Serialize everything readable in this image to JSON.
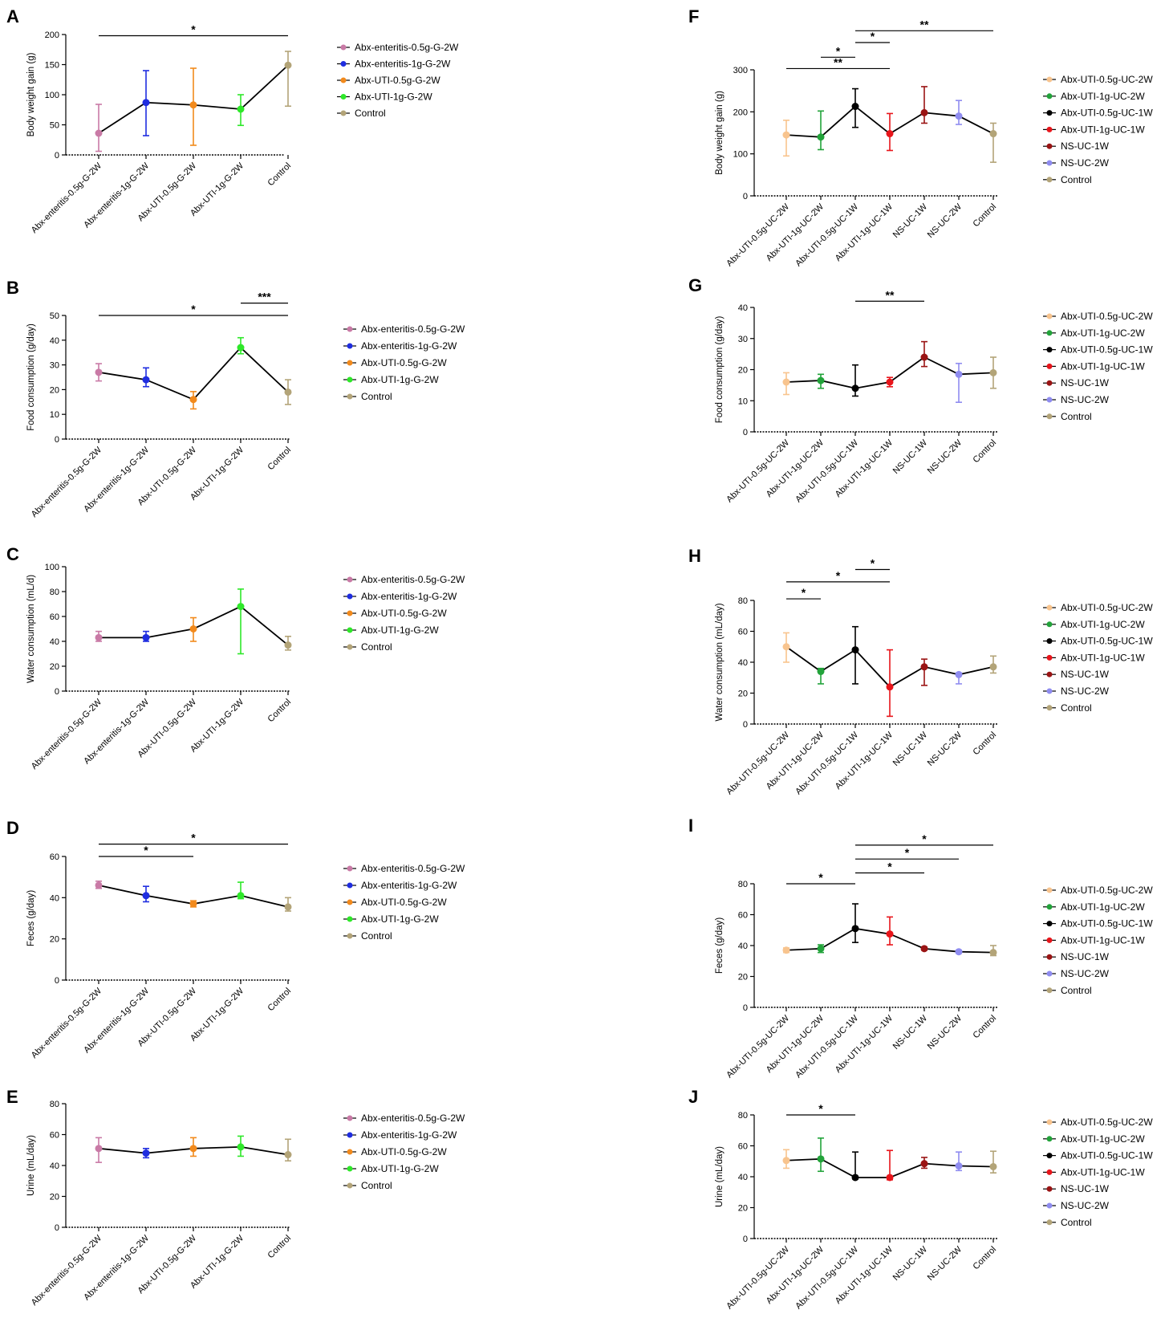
{
  "colors": {
    "pink": "#c97aa6",
    "blue": "#1f2de0",
    "orange": "#f28a1c",
    "green_bright": "#2ee829",
    "khaki": "#b3a478",
    "peach": "#f8c48e",
    "green": "#22a33a",
    "black": "#000000",
    "red": "#e8151b",
    "darkred": "#9a1414",
    "lavender": "#8f8cf0"
  },
  "chart_data": [
    {
      "panel": "A",
      "type": "line",
      "categories": [
        "Abx-enteritis-0.5g-G-2W",
        "Abx-enteritis-1g-G-2W",
        "Abx-UTI-0.5g-G-2W",
        "Abx-UTI-1g-G-2W",
        "Control"
      ],
      "values": [
        36,
        87,
        83,
        76,
        149
      ],
      "err_low": [
        30,
        55,
        67,
        27,
        68
      ],
      "err_high": [
        48,
        53,
        61,
        24,
        23
      ],
      "point_colors": [
        "#c97aa6",
        "#1f2de0",
        "#f28a1c",
        "#2ee829",
        "#b3a478"
      ],
      "line_color": "#000000",
      "ylabel": "Body weight gain (g)",
      "ylim": [
        0,
        200
      ],
      "yticks": [
        0,
        50,
        100,
        150,
        200
      ],
      "significance": [
        {
          "from": 0,
          "to": 4,
          "label": "*",
          "y": 198
        }
      ],
      "legend": [
        "Abx-enteritis-0.5g-G-2W",
        "Abx-enteritis-1g-G-2W",
        "Abx-UTI-0.5g-G-2W",
        "Abx-UTI-1g-G-2W",
        "Control"
      ]
    },
    {
      "panel": "B",
      "type": "line",
      "categories": [
        "Abx-enteritis-0.5g-G-2W",
        "Abx-enteritis-1g-G-2W",
        "Abx-UTI-0.5g-G-2W",
        "Abx-UTI-1g-G-2W",
        "Control"
      ],
      "values": [
        27,
        24,
        16,
        37,
        19
      ],
      "err_low": [
        3.5,
        2.8,
        3.8,
        2.5,
        5
      ],
      "err_high": [
        3.5,
        4.8,
        3.2,
        4,
        5
      ],
      "point_colors": [
        "#c97aa6",
        "#1f2de0",
        "#f28a1c",
        "#2ee829",
        "#b3a478"
      ],
      "line_color": "#000000",
      "ylabel": "Food consumption (g/day)",
      "ylim": [
        0,
        50
      ],
      "yticks": [
        0,
        10,
        20,
        30,
        40,
        50
      ],
      "significance": [
        {
          "from": 0,
          "to": 4,
          "label": "*",
          "y": 50
        },
        {
          "from": 3,
          "to": 4,
          "label": "***",
          "y": 55
        }
      ],
      "legend": [
        "Abx-enteritis-0.5g-G-2W",
        "Abx-enteritis-1g-G-2W",
        "Abx-UTI-0.5g-G-2W",
        "Abx-UTI-1g-G-2W",
        "Control"
      ]
    },
    {
      "panel": "C",
      "type": "line",
      "categories": [
        "Abx-enteritis-0.5g-G-2W",
        "Abx-enteritis-1g-G-2W",
        "Abx-UTI-0.5g-G-2W",
        "Abx-UTI-1g-G-2W",
        "Control"
      ],
      "values": [
        43,
        43,
        50,
        68,
        37
      ],
      "err_low": [
        3,
        3,
        10,
        38,
        4
      ],
      "err_high": [
        5,
        5,
        9,
        14,
        7
      ],
      "point_colors": [
        "#c97aa6",
        "#1f2de0",
        "#f28a1c",
        "#2ee829",
        "#b3a478"
      ],
      "line_color": "#000000",
      "ylabel": "Water consumption (mL/d)",
      "ylim": [
        0,
        100
      ],
      "yticks": [
        0,
        20,
        40,
        60,
        80,
        100
      ],
      "significance": [],
      "legend": [
        "Abx-enteritis-0.5g-G-2W",
        "Abx-enteritis-1g-G-2W",
        "Abx-UTI-0.5g-G-2W",
        "Abx-UTI-1g-G-2W",
        "Control"
      ]
    },
    {
      "panel": "D",
      "type": "line",
      "categories": [
        "Abx-enteritis-0.5g-G-2W",
        "Abx-enteritis-1g-G-2W",
        "Abx-UTI-0.5g-G-2W",
        "Abx-UTI-1g-G-2W",
        "Control"
      ],
      "values": [
        46,
        41,
        37,
        41,
        35.5
      ],
      "err_low": [
        1.5,
        3,
        1.5,
        1.5,
        2
      ],
      "err_high": [
        2,
        4.5,
        1.5,
        6.5,
        4.5
      ],
      "point_colors": [
        "#c97aa6",
        "#1f2de0",
        "#f28a1c",
        "#2ee829",
        "#b3a478"
      ],
      "line_color": "#000000",
      "ylabel": "Feces (g/day)",
      "ylim": [
        0,
        60
      ],
      "yticks": [
        0,
        20,
        40,
        60
      ],
      "significance": [
        {
          "from": 0,
          "to": 2,
          "label": "*",
          "y": 60
        },
        {
          "from": 0,
          "to": 4,
          "label": "*",
          "y": 66
        }
      ],
      "legend": [
        "Abx-enteritis-0.5g-G-2W",
        "Abx-enteritis-1g-G-2W",
        "Abx-UTI-0.5g-G-2W",
        "Abx-UTI-1g-G-2W",
        "Control"
      ]
    },
    {
      "panel": "E",
      "type": "line",
      "categories": [
        "Abx-enteritis-0.5g-G-2W",
        "Abx-enteritis-1g-G-2W",
        "Abx-UTI-0.5g-G-2W",
        "Abx-UTI-1g-G-2W",
        "Control"
      ],
      "values": [
        51,
        48,
        51,
        52,
        47
      ],
      "err_low": [
        9,
        3,
        5,
        6,
        4
      ],
      "err_high": [
        7,
        3,
        7,
        7,
        10
      ],
      "point_colors": [
        "#c97aa6",
        "#1f2de0",
        "#f28a1c",
        "#2ee829",
        "#b3a478"
      ],
      "line_color": "#000000",
      "ylabel": "Urine (mL/day)",
      "ylim": [
        0,
        80
      ],
      "yticks": [
        0,
        20,
        40,
        60,
        80
      ],
      "significance": [],
      "legend": [
        "Abx-enteritis-0.5g-G-2W",
        "Abx-enteritis-1g-G-2W",
        "Abx-UTI-0.5g-G-2W",
        "Abx-UTI-1g-G-2W",
        "Control"
      ]
    },
    {
      "panel": "F",
      "type": "line",
      "categories": [
        "Abx-UTI-0.5g-UC-2W",
        "Abx-UTI-1g-UC-2W",
        "Abx-UTI-0.5g-UC-1W",
        "Abx-UTI-1g-UC-1W",
        "NS-UC-1W",
        "NS-UC-2W",
        "Control"
      ],
      "values": [
        145,
        140,
        213,
        148,
        198,
        190,
        148
      ],
      "err_low": [
        50,
        30,
        50,
        40,
        25,
        20,
        68
      ],
      "err_high": [
        35,
        62,
        42,
        48,
        62,
        37,
        25
      ],
      "point_colors": [
        "#f8c48e",
        "#22a33a",
        "#000000",
        "#e8151b",
        "#9a1414",
        "#8f8cf0",
        "#b3a478"
      ],
      "line_color": "#000000",
      "ylabel": "Body weight gain (g)",
      "ylim": [
        0,
        300
      ],
      "yticks": [
        0,
        100,
        200,
        300
      ],
      "significance": [
        {
          "from": 0,
          "to": 3,
          "label": "**",
          "y": 303
        },
        {
          "from": 1,
          "to": 2,
          "label": "*",
          "y": 330
        },
        {
          "from": 2,
          "to": 3,
          "label": "*",
          "y": 365
        },
        {
          "from": 2,
          "to": 6,
          "label": "**",
          "y": 393
        }
      ],
      "legend": [
        "Abx-UTI-0.5g-UC-2W",
        "Abx-UTI-1g-UC-2W",
        "Abx-UTI-0.5g-UC-1W",
        "Abx-UTI-1g-UC-1W",
        "NS-UC-1W",
        "NS-UC-2W",
        "Control"
      ]
    },
    {
      "panel": "G",
      "type": "line",
      "categories": [
        "Abx-UTI-0.5g-UC-2W",
        "Abx-UTI-1g-UC-2W",
        "Abx-UTI-0.5g-UC-1W",
        "Abx-UTI-1g-UC-1W",
        "NS-UC-1W",
        "NS-UC-2W",
        "Control"
      ],
      "values": [
        16,
        16.5,
        14,
        16,
        24,
        18.5,
        19
      ],
      "err_low": [
        4,
        2.5,
        2.5,
        1.5,
        3,
        9,
        5
      ],
      "err_high": [
        3,
        2,
        7.5,
        1.5,
        5,
        3.5,
        5
      ],
      "point_colors": [
        "#f8c48e",
        "#22a33a",
        "#000000",
        "#e8151b",
        "#9a1414",
        "#8f8cf0",
        "#b3a478"
      ],
      "line_color": "#000000",
      "ylabel": "Food consumption (g/day)",
      "ylim": [
        0,
        40
      ],
      "yticks": [
        0,
        10,
        20,
        30,
        40
      ],
      "significance": [
        {
          "from": 2,
          "to": 4,
          "label": "**",
          "y": 42
        }
      ],
      "legend": [
        "Abx-UTI-0.5g-UC-2W",
        "Abx-UTI-1g-UC-2W",
        "Abx-UTI-0.5g-UC-1W",
        "Abx-UTI-1g-UC-1W",
        "NS-UC-1W",
        "NS-UC-2W",
        "Control"
      ]
    },
    {
      "panel": "H",
      "type": "line",
      "categories": [
        "Abx-UTI-0.5g-UC-2W",
        "Abx-UTI-1g-UC-2W",
        "Abx-UTI-0.5g-UC-1W",
        "Abx-UTI-1g-UC-1W",
        "NS-UC-1W",
        "NS-UC-2W",
        "Control"
      ],
      "values": [
        50,
        34,
        48,
        24,
        37,
        32,
        37
      ],
      "err_low": [
        10,
        8,
        22,
        19,
        12,
        6,
        4
      ],
      "err_high": [
        9,
        2,
        15,
        24,
        5,
        1,
        7
      ],
      "point_colors": [
        "#f8c48e",
        "#22a33a",
        "#000000",
        "#e8151b",
        "#9a1414",
        "#8f8cf0",
        "#b3a478"
      ],
      "line_color": "#000000",
      "ylabel": "Water consumption (mL/day)",
      "ylim": [
        0,
        80
      ],
      "yticks": [
        0,
        20,
        40,
        60,
        80
      ],
      "significance": [
        {
          "from": 0,
          "to": 1,
          "label": "*",
          "y": 81
        },
        {
          "from": 0,
          "to": 3,
          "label": "*",
          "y": 92
        },
        {
          "from": 2,
          "to": 3,
          "label": "*",
          "y": 100
        }
      ],
      "legend": [
        "Abx-UTI-0.5g-UC-2W",
        "Abx-UTI-1g-UC-2W",
        "Abx-UTI-0.5g-UC-1W",
        "Abx-UTI-1g-UC-1W",
        "NS-UC-1W",
        "NS-UC-2W",
        "Control"
      ]
    },
    {
      "panel": "I",
      "type": "line",
      "categories": [
        "Abx-UTI-0.5g-UC-2W",
        "Abx-UTI-1g-UC-2W",
        "Abx-UTI-0.5g-UC-1W",
        "Abx-UTI-1g-UC-1W",
        "NS-UC-1W",
        "NS-UC-2W",
        "Control"
      ],
      "values": [
        37,
        38,
        51,
        47.5,
        38,
        36,
        35.5
      ],
      "err_low": [
        1.5,
        2.5,
        9,
        7,
        1,
        1,
        2
      ],
      "err_high": [
        1.5,
        2.5,
        16,
        11,
        1,
        1,
        4.5
      ],
      "point_colors": [
        "#f8c48e",
        "#22a33a",
        "#000000",
        "#e8151b",
        "#9a1414",
        "#8f8cf0",
        "#b3a478"
      ],
      "line_color": "#000000",
      "ylabel": "Feces (g/day)",
      "ylim": [
        0,
        80
      ],
      "yticks": [
        0,
        20,
        40,
        60,
        80
      ],
      "significance": [
        {
          "from": 0,
          "to": 2,
          "label": "*",
          "y": 80
        },
        {
          "from": 2,
          "to": 4,
          "label": "*",
          "y": 87
        },
        {
          "from": 2,
          "to": 5,
          "label": "*",
          "y": 96
        },
        {
          "from": 2,
          "to": 6,
          "label": "*",
          "y": 105
        }
      ],
      "legend": [
        "Abx-UTI-0.5g-UC-2W",
        "Abx-UTI-1g-UC-2W",
        "Abx-UTI-0.5g-UC-1W",
        "Abx-UTI-1g-UC-1W",
        "NS-UC-1W",
        "NS-UC-2W",
        "Control"
      ]
    },
    {
      "panel": "J",
      "type": "line",
      "categories": [
        "Abx-UTI-0.5g-UC-2W",
        "Abx-UTI-1g-UC-2W",
        "Abx-UTI-0.5g-UC-1W",
        "Abx-UTI-1g-UC-1W",
        "NS-UC-1W",
        "NS-UC-2W",
        "Control"
      ],
      "values": [
        50.5,
        51.5,
        39.5,
        39.5,
        48.5,
        47,
        46.5
      ],
      "err_low": [
        5,
        8,
        1,
        1.5,
        3,
        3,
        4
      ],
      "err_high": [
        7,
        13.5,
        16.5,
        17.5,
        4,
        9,
        10
      ],
      "point_colors": [
        "#f8c48e",
        "#22a33a",
        "#000000",
        "#e8151b",
        "#9a1414",
        "#8f8cf0",
        "#b3a478"
      ],
      "line_color": "#000000",
      "ylabel": "Urine (mL/day)",
      "ylim": [
        0,
        80
      ],
      "yticks": [
        0,
        20,
        40,
        60,
        80
      ],
      "significance": [
        {
          "from": 0,
          "to": 2,
          "label": "*",
          "y": 80
        }
      ],
      "legend": [
        "Abx-UTI-0.5g-UC-2W",
        "Abx-UTI-1g-UC-2W",
        "Abx-UTI-0.5g-UC-1W",
        "Abx-UTI-1g-UC-1W",
        "NS-UC-1W",
        "NS-UC-2W",
        "Control"
      ]
    }
  ]
}
